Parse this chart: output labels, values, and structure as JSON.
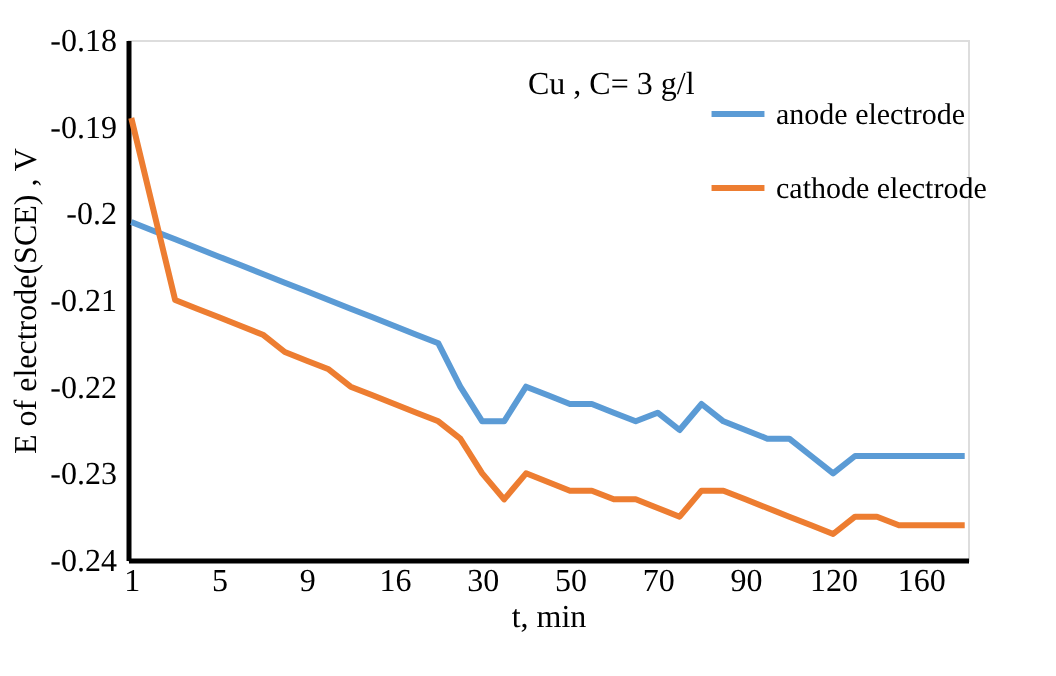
{
  "chart_data": {
    "type": "line",
    "xlabel": "t, min",
    "ylabel": "E of electrode(SCE) , V",
    "categories": [
      "1",
      null,
      null,
      null,
      "5",
      null,
      null,
      null,
      "9",
      null,
      null,
      null,
      "16",
      null,
      null,
      null,
      "30",
      null,
      null,
      null,
      "50",
      null,
      null,
      null,
      "70",
      null,
      null,
      null,
      "90",
      null,
      null,
      null,
      "120",
      null,
      null,
      null,
      "160",
      null,
      null
    ],
    "series": [
      {
        "name": "anode electrode",
        "color": "#5b9bd5",
        "values": [
          -0.201,
          -0.202,
          -0.203,
          -0.204,
          -0.205,
          -0.206,
          -0.207,
          -0.208,
          -0.209,
          -0.21,
          -0.211,
          -0.212,
          -0.213,
          -0.214,
          -0.215,
          -0.22,
          -0.224,
          -0.224,
          -0.22,
          -0.221,
          -0.222,
          -0.222,
          -0.223,
          -0.224,
          -0.223,
          -0.225,
          -0.222,
          -0.224,
          -0.225,
          -0.226,
          -0.226,
          -0.228,
          -0.23,
          -0.228,
          -0.228,
          -0.228,
          -0.228,
          -0.228,
          -0.228
        ]
      },
      {
        "name": "cathode electrode",
        "color": "#ed7d31",
        "values": [
          -0.189,
          -0.1995,
          -0.21,
          -0.211,
          -0.212,
          -0.213,
          -0.214,
          -0.216,
          -0.217,
          -0.218,
          -0.22,
          -0.221,
          -0.222,
          -0.223,
          -0.224,
          -0.226,
          -0.23,
          -0.233,
          -0.23,
          -0.231,
          -0.232,
          -0.232,
          -0.233,
          -0.233,
          -0.234,
          -0.235,
          -0.232,
          -0.232,
          -0.233,
          -0.234,
          -0.235,
          -0.236,
          -0.237,
          -0.235,
          -0.235,
          -0.236,
          -0.236,
          -0.236,
          -0.236
        ]
      }
    ],
    "ylim": [
      -0.24,
      -0.18
    ],
    "yticks": [
      -0.24,
      -0.23,
      -0.22,
      -0.21,
      -0.2,
      -0.19,
      -0.18
    ],
    "annotations": [
      "Cu , C= 3 g/l"
    ],
    "legend": "top right",
    "grid": false,
    "marker": "none",
    "line_style": "solid"
  }
}
